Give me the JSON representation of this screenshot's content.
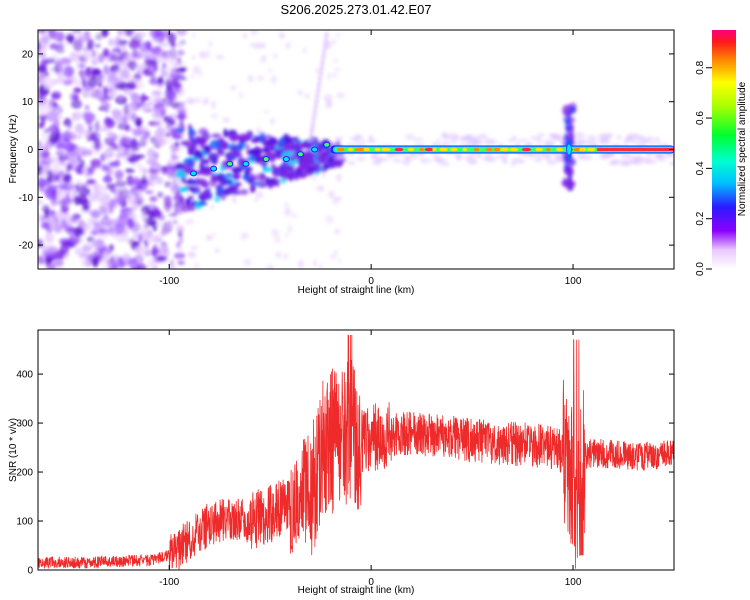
{
  "title": "S206.2025.273.01.42.E07",
  "colors": {
    "snr_line": "#ee2a2a",
    "ridge": "#ff2a3c",
    "low_amplitude": "#7a22e6"
  },
  "chart_data": [
    {
      "type": "heatmap",
      "name": "spectrogram",
      "title": "",
      "xlabel": "Height of straight line (km)",
      "ylabel": "Frequency (Hz)",
      "xlim": [
        -165,
        150
      ],
      "ylim": [
        -25,
        25
      ],
      "xticks": [
        -100,
        0,
        100
      ],
      "yticks": [
        -20,
        -10,
        0,
        10,
        20
      ],
      "colorbar": {
        "label": "Normalized spectral amplitude",
        "range": [
          0.0,
          0.95
        ],
        "ticks": [
          0.0,
          0.2,
          0.4,
          0.6,
          0.8
        ]
      },
      "description_points": {
        "noise_region_x": [
          -165,
          -95
        ],
        "signal_onset_x": -95,
        "ridge_start_x": -20,
        "ridge_frequency": 0,
        "disturbance_x": 98,
        "disturbance_freq_span": [
          -8,
          8
        ]
      }
    },
    {
      "type": "line",
      "name": "snr",
      "title": "",
      "xlabel": "Height of straight line (km)",
      "ylabel": "SNR (10 * v/v)",
      "xlim": [
        -165,
        150
      ],
      "ylim": [
        0,
        490
      ],
      "xticks": [
        -100,
        0,
        100
      ],
      "yticks": [
        0,
        100,
        200,
        300,
        400
      ],
      "series": [
        {
          "name": "SNR",
          "x": [
            -165,
            -140,
            -110,
            -100,
            -90,
            -80,
            -70,
            -60,
            -50,
            -40,
            -30,
            -25,
            -20,
            -15,
            -10,
            -5,
            0,
            10,
            20,
            30,
            40,
            50,
            60,
            70,
            80,
            90,
            95,
            100,
            102,
            105,
            110,
            120,
            130,
            140,
            150
          ],
          "values": [
            15,
            15,
            20,
            30,
            60,
            95,
            105,
            100,
            115,
            135,
            170,
            230,
            260,
            275,
            280,
            270,
            270,
            275,
            280,
            275,
            270,
            265,
            260,
            258,
            255,
            250,
            240,
            180,
            150,
            230,
            240,
            235,
            230,
            235,
            240
          ]
        }
      ]
    }
  ]
}
